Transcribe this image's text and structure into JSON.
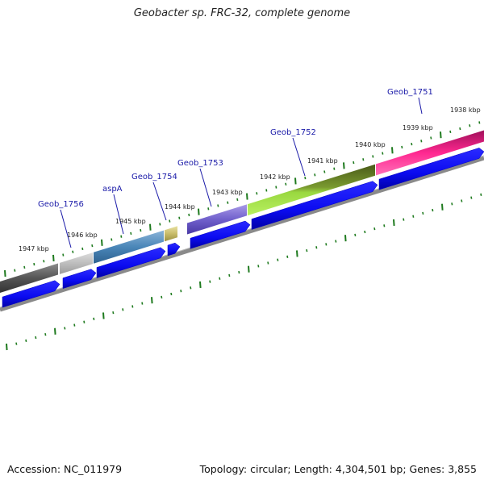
{
  "title": "Geobacter sp. FRC-32, complete genome",
  "footer": {
    "accession": "Accession: NC_011979",
    "topology": "Topology: circular; Length: 4,304,501 bp; Genes: 3,855"
  },
  "ruler": {
    "labels": [
      "1947 kbp",
      "1946 kbp",
      "1945 kbp",
      "1944 kbp",
      "1943 kbp",
      "1942 kbp",
      "1941 kbp",
      "1940 kbp",
      "1939 kbp",
      "1938 kbp"
    ]
  },
  "gene_labels": [
    "Geob_1756",
    "aspA",
    "Geob_1754",
    "Geob_1753",
    "Geob_1752",
    "Geob_1751"
  ],
  "colors": {
    "cds": "#0b0bf0",
    "backbone": "#8a8a8a",
    "tick": "#1e7a1e",
    "label": "#1a1aa8"
  }
}
